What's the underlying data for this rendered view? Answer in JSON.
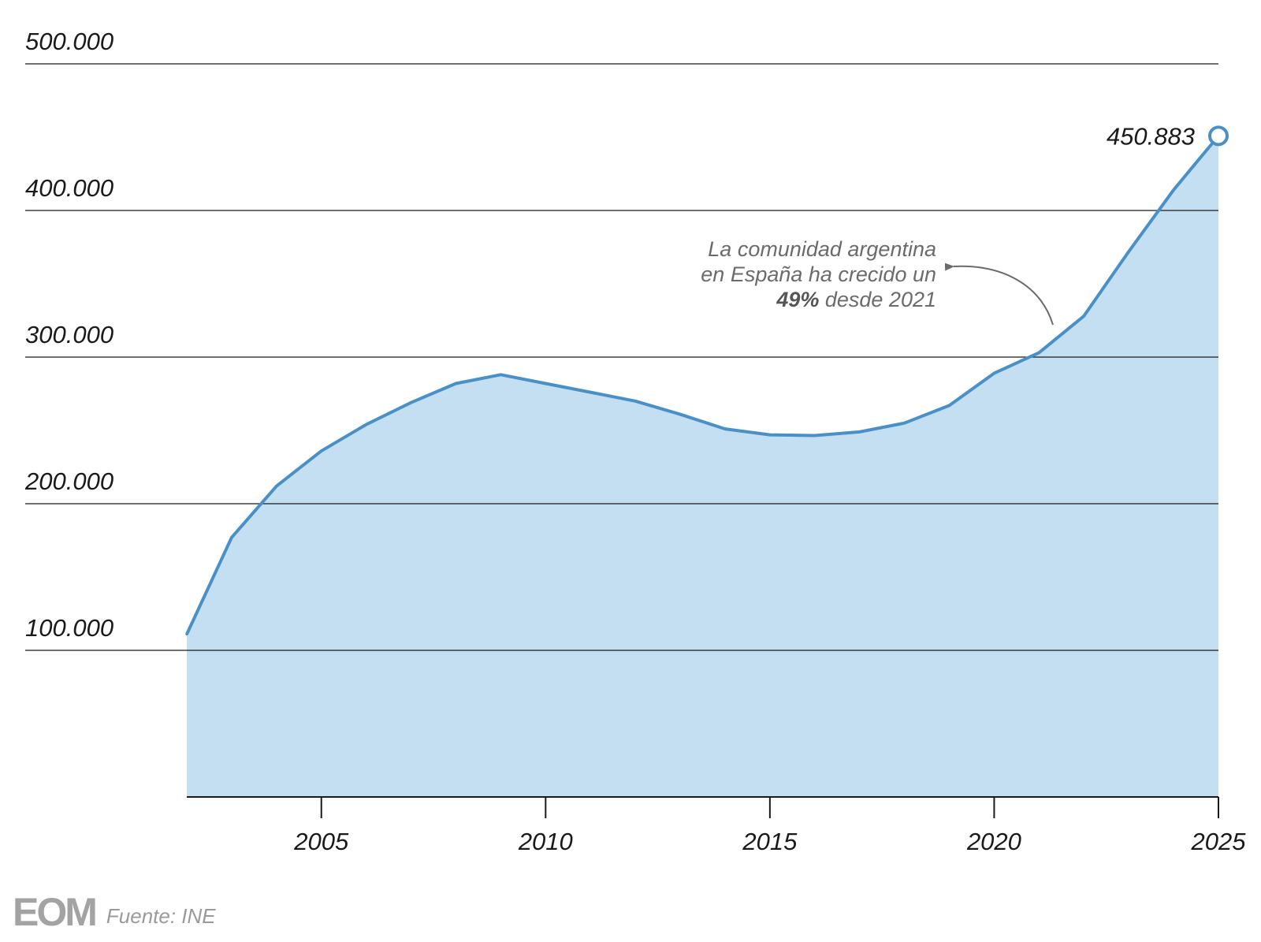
{
  "chart_data": {
    "type": "area",
    "x": [
      2002,
      2003,
      2004,
      2005,
      2006,
      2007,
      2008,
      2009,
      2010,
      2011,
      2012,
      2013,
      2014,
      2015,
      2016,
      2017,
      2018,
      2019,
      2020,
      2021,
      2022,
      2023,
      2024,
      2025
    ],
    "series": [
      {
        "values": [
          111000,
          177000,
          212000,
          236000,
          254000,
          269000,
          282000,
          288000,
          282000,
          276000,
          270000,
          261000,
          251000,
          247000,
          246500,
          249000,
          255000,
          267000,
          289000,
          303000,
          328000,
          372000,
          414000,
          450883
        ]
      }
    ],
    "xticks": [
      2005,
      2010,
      2015,
      2020,
      2025
    ],
    "xtick_labels": [
      "2005",
      "2010",
      "2015",
      "2020",
      "2025"
    ],
    "yticks": [
      100000,
      200000,
      300000,
      400000,
      500000
    ],
    "ytick_labels": [
      "100.000",
      "200.000",
      "300.000",
      "400.000",
      "500.000"
    ],
    "ylim": [
      0,
      500000
    ],
    "xlim": [
      2002,
      2025
    ],
    "grid": "horizontal",
    "end_label": "450.883",
    "annotation": {
      "line1": "La comunidad argentina",
      "line2": "en España ha crecido un",
      "line3_bold": "49%",
      "line3_rest": " desde 2021"
    },
    "colors": {
      "line": "#4a90c8",
      "area": "#c5dff2",
      "grid": "#1a1a1a",
      "annotation": "#6b6b6b"
    }
  },
  "footer": {
    "logo": "EOM",
    "source": "Fuente: INE"
  }
}
